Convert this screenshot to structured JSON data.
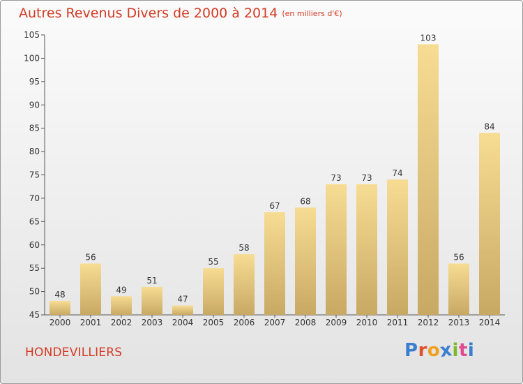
{
  "header": {
    "title": "Autres Revenus Divers de 2000 à 2014",
    "unit": "(en milliers d'€)"
  },
  "footer": {
    "city": "HONDEVILLIERS",
    "logo": [
      "P",
      "r",
      "o",
      "x",
      "i",
      "t",
      "i"
    ],
    "logo_colors": [
      "#3a7ed0",
      "#e0502a",
      "#f0a020",
      "#3a7ed0",
      "#7cba2c",
      "#e04a8e",
      "#3a7ed0"
    ]
  },
  "chart_data": {
    "type": "bar",
    "title": "Autres Revenus Divers de 2000 à 2014",
    "subtitle": "(en milliers d'€)",
    "categories": [
      "2000",
      "2001",
      "2002",
      "2003",
      "2004",
      "2005",
      "2006",
      "2007",
      "2008",
      "2009",
      "2010",
      "2011",
      "2012",
      "2013",
      "2014"
    ],
    "values": [
      48,
      56,
      49,
      51,
      47,
      55,
      58,
      67,
      68,
      73,
      73,
      74,
      103,
      56,
      84
    ],
    "ylim": [
      45,
      105
    ],
    "yticks": [
      45,
      50,
      55,
      60,
      65,
      70,
      75,
      80,
      85,
      90,
      95,
      100,
      105
    ],
    "grid": false,
    "bar_color_top": "#f7dc93",
    "bar_color_bottom": "#c8a964"
  }
}
